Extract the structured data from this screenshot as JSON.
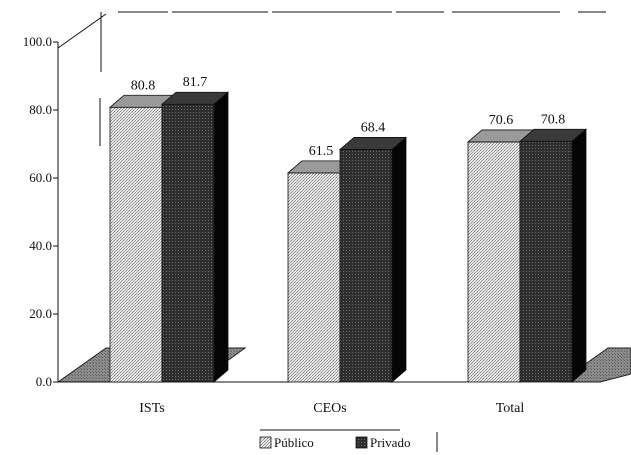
{
  "chart_data": {
    "type": "bar",
    "categories": [
      "ISTs",
      "CEOs",
      "Total"
    ],
    "series": [
      {
        "name": "Público",
        "values": [
          80.8,
          61.5,
          70.6
        ]
      },
      {
        "name": "Privado",
        "values": [
          81.7,
          68.4,
          70.8
        ]
      }
    ],
    "value_labels": [
      [
        "80.8",
        "61.5",
        "70.6"
      ],
      [
        "81.7",
        "68.4",
        "70.8"
      ]
    ],
    "y_ticks": [
      "0.0",
      "20.0",
      "40.0",
      "60.0",
      "80.0",
      "100.0"
    ],
    "ylim": [
      0,
      100
    ],
    "legend": [
      "Público",
      "Privado"
    ],
    "legend_position": "bottom",
    "grid": false,
    "style": "3d-bar",
    "colors": {
      "publico": "#c8c8c8",
      "privado": "#2c2c2c",
      "floor": "#7a7a7a"
    }
  }
}
